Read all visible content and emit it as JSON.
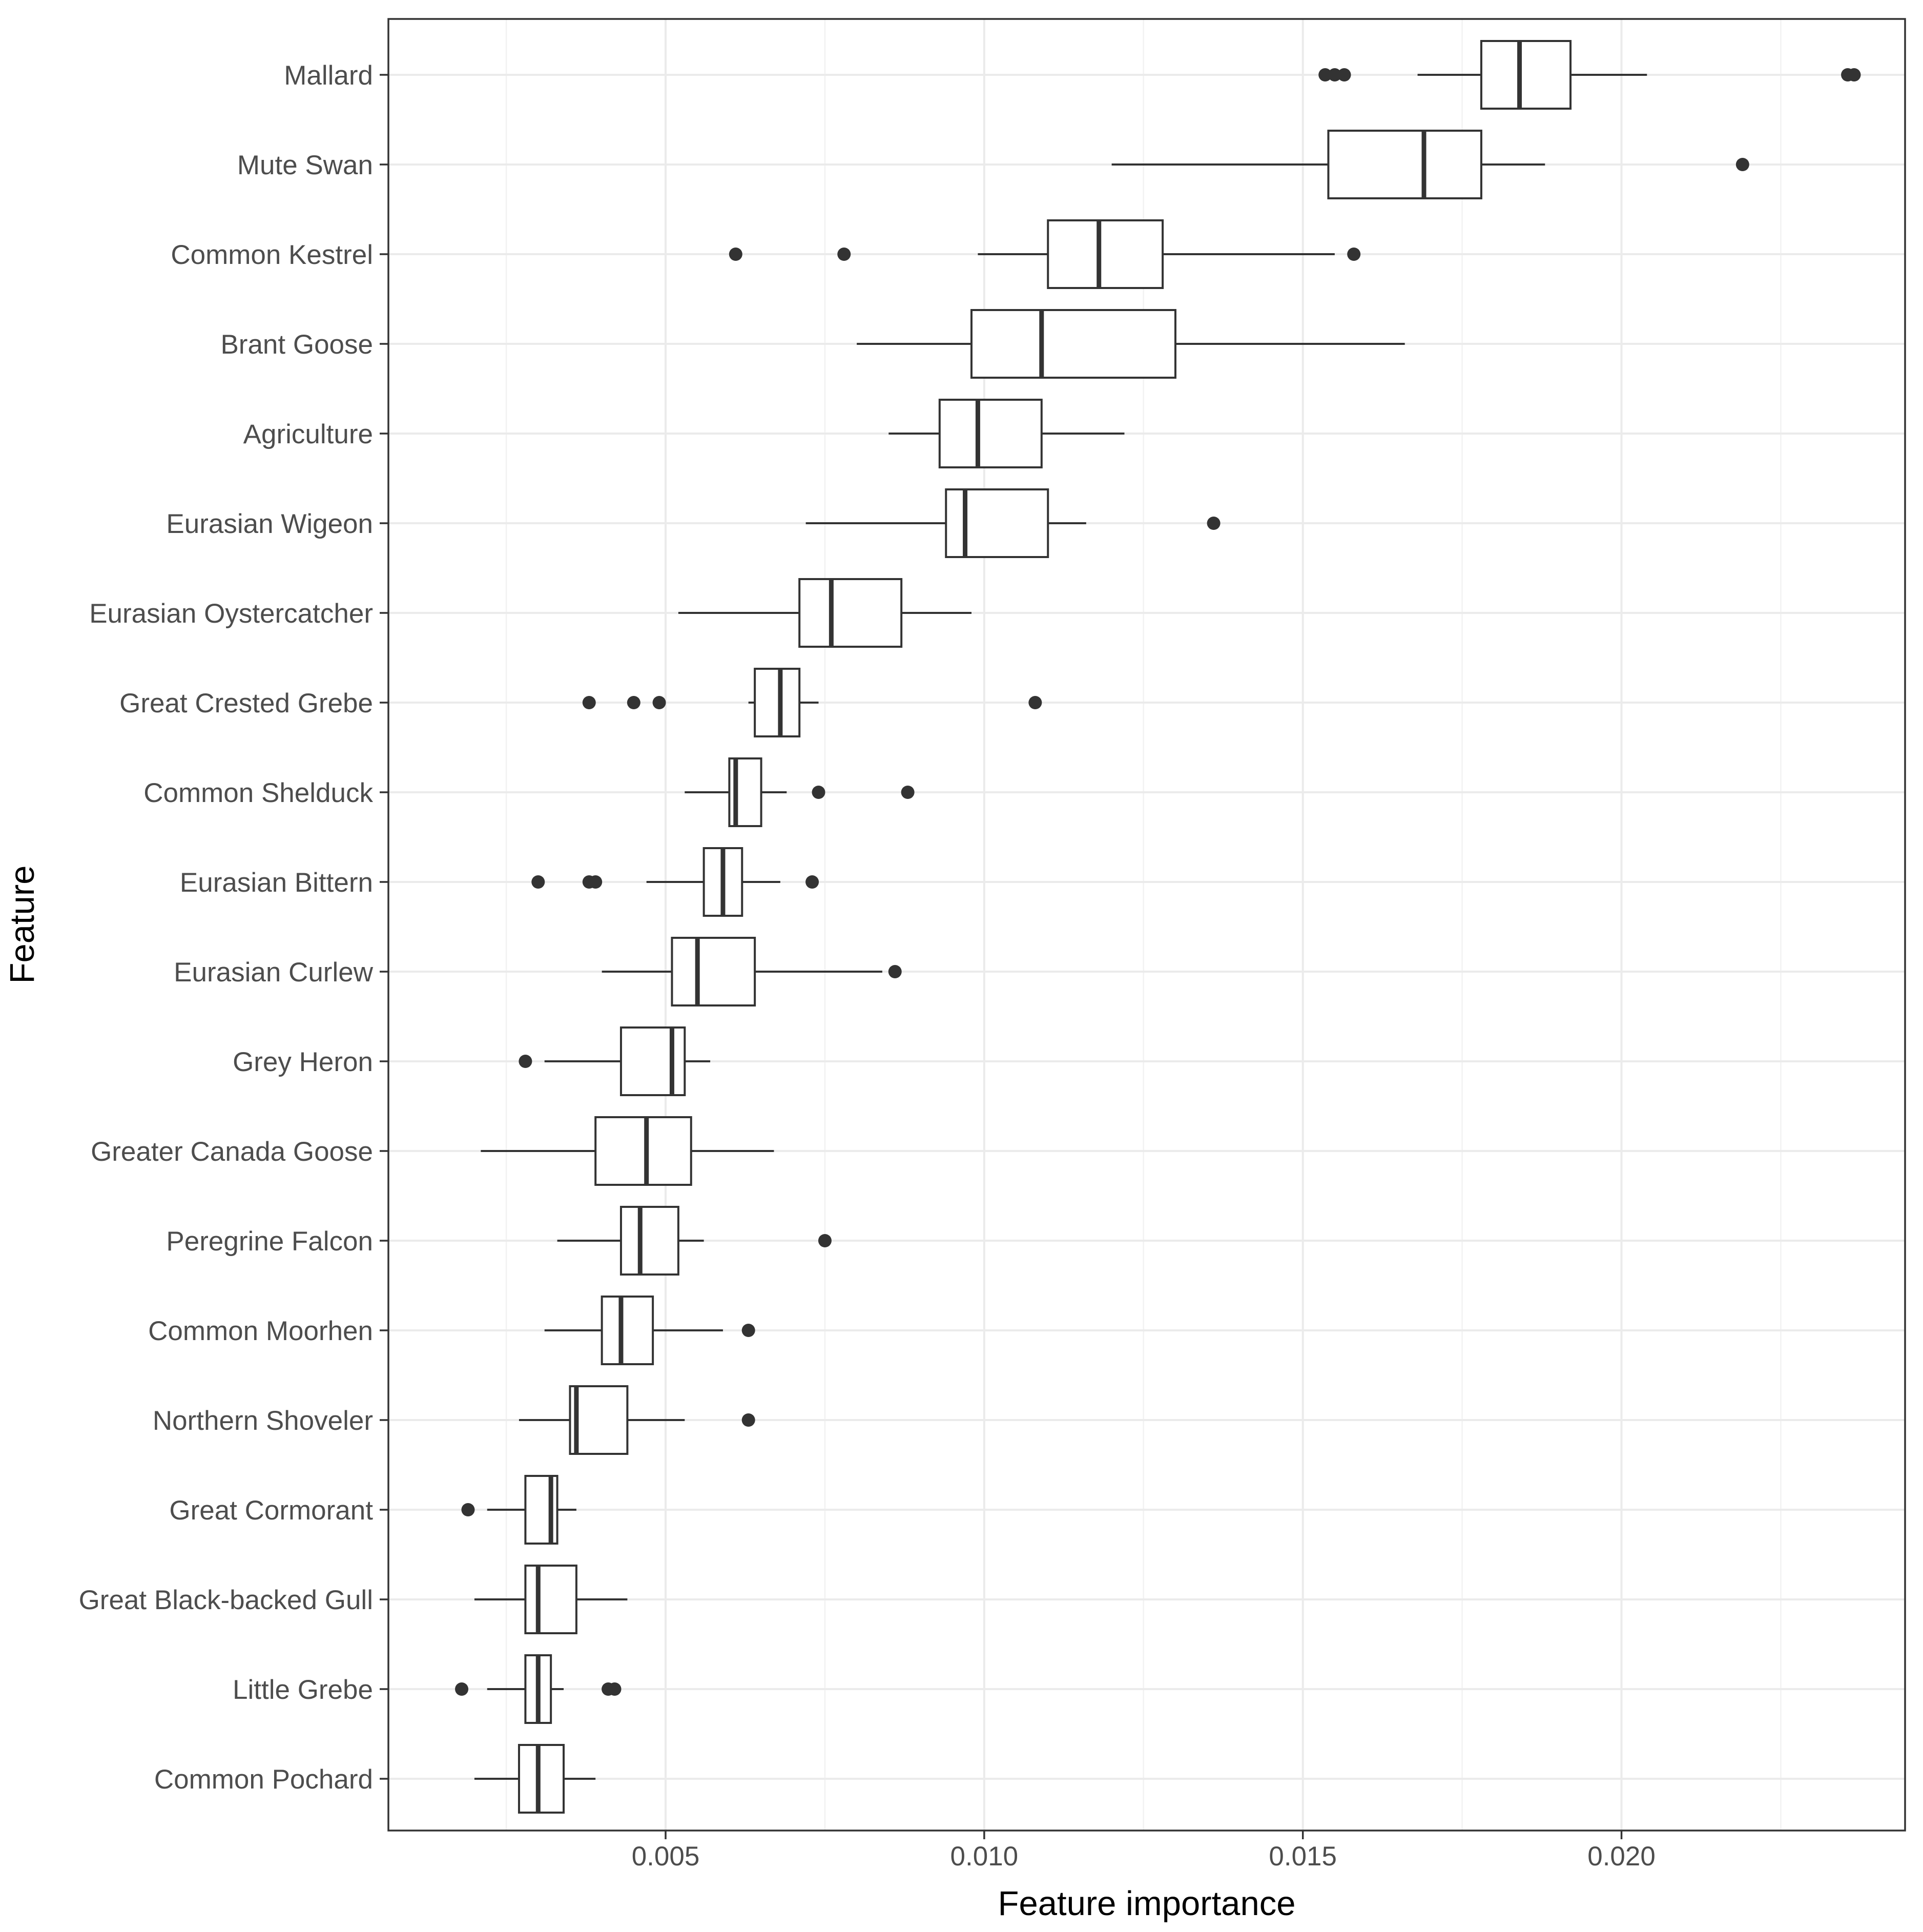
{
  "chart_data": {
    "type": "boxplot",
    "orientation": "horizontal",
    "xlabel": "Feature importance",
    "ylabel": "Feature",
    "xlim": [
      0.00065,
      0.02445
    ],
    "xticks": [
      0.005,
      0.01,
      0.015,
      0.02
    ],
    "xtick_labels": [
      "0.005",
      "0.010",
      "0.015",
      "0.020"
    ],
    "grid": true,
    "colors": {
      "box_stroke": "#333333",
      "outlier": "#333333",
      "grid_major": "#ebebeb",
      "grid_minor": "#f2f2f2",
      "panel_border": "#333333",
      "tick_text": "#4d4d4d"
    },
    "series": [
      {
        "name": "Mallard",
        "whisker_low": 0.0168,
        "q1": 0.0178,
        "median": 0.0184,
        "q3": 0.0192,
        "whisker_high": 0.0204,
        "outliers": [
          0.01535,
          0.0155,
          0.01565,
          0.02355,
          0.02365
        ]
      },
      {
        "name": "Mute Swan",
        "whisker_low": 0.012,
        "q1": 0.0154,
        "median": 0.0169,
        "q3": 0.0178,
        "whisker_high": 0.0188,
        "outliers": [
          0.0219
        ]
      },
      {
        "name": "Common Kestrel",
        "whisker_low": 0.0099,
        "q1": 0.011,
        "median": 0.0118,
        "q3": 0.0128,
        "whisker_high": 0.0155,
        "outliers": [
          0.0061,
          0.0078,
          0.0158
        ]
      },
      {
        "name": "Brant Goose",
        "whisker_low": 0.008,
        "q1": 0.0098,
        "median": 0.0109,
        "q3": 0.013,
        "whisker_high": 0.0166,
        "outliers": []
      },
      {
        "name": "Agriculture",
        "whisker_low": 0.0085,
        "q1": 0.0093,
        "median": 0.0099,
        "q3": 0.0109,
        "whisker_high": 0.0122,
        "outliers": []
      },
      {
        "name": "Eurasian Wigeon",
        "whisker_low": 0.0072,
        "q1": 0.0094,
        "median": 0.0097,
        "q3": 0.011,
        "whisker_high": 0.0116,
        "outliers": [
          0.0136
        ]
      },
      {
        "name": "Eurasian Oystercatcher",
        "whisker_low": 0.0052,
        "q1": 0.0071,
        "median": 0.0076,
        "q3": 0.0087,
        "whisker_high": 0.0098,
        "outliers": []
      },
      {
        "name": "Great Crested Grebe",
        "whisker_low": 0.0063,
        "q1": 0.0064,
        "median": 0.0068,
        "q3": 0.0071,
        "whisker_high": 0.0074,
        "outliers": [
          0.0038,
          0.0045,
          0.0049,
          0.0108
        ]
      },
      {
        "name": "Common Shelduck",
        "whisker_low": 0.0053,
        "q1": 0.006,
        "median": 0.0061,
        "q3": 0.0065,
        "whisker_high": 0.0069,
        "outliers": [
          0.0074,
          0.0088
        ]
      },
      {
        "name": "Eurasian Bittern",
        "whisker_low": 0.0047,
        "q1": 0.0056,
        "median": 0.0059,
        "q3": 0.0062,
        "whisker_high": 0.0068,
        "outliers": [
          0.003,
          0.0038,
          0.0039,
          0.0073
        ]
      },
      {
        "name": "Eurasian Curlew",
        "whisker_low": 0.004,
        "q1": 0.0051,
        "median": 0.0055,
        "q3": 0.0064,
        "whisker_high": 0.0084,
        "outliers": [
          0.0086
        ]
      },
      {
        "name": "Grey Heron",
        "whisker_low": 0.0031,
        "q1": 0.0043,
        "median": 0.0051,
        "q3": 0.0053,
        "whisker_high": 0.0057,
        "outliers": [
          0.0028
        ]
      },
      {
        "name": "Greater Canada Goose",
        "whisker_low": 0.0021,
        "q1": 0.0039,
        "median": 0.0047,
        "q3": 0.0054,
        "whisker_high": 0.0067,
        "outliers": []
      },
      {
        "name": "Peregrine Falcon",
        "whisker_low": 0.0033,
        "q1": 0.0043,
        "median": 0.0046,
        "q3": 0.0052,
        "whisker_high": 0.0056,
        "outliers": [
          0.0075
        ]
      },
      {
        "name": "Common Moorhen",
        "whisker_low": 0.0031,
        "q1": 0.004,
        "median": 0.0043,
        "q3": 0.0048,
        "whisker_high": 0.0059,
        "outliers": [
          0.0063
        ]
      },
      {
        "name": "Northern Shoveler",
        "whisker_low": 0.0027,
        "q1": 0.0035,
        "median": 0.0036,
        "q3": 0.0044,
        "whisker_high": 0.0053,
        "outliers": [
          0.0063
        ]
      },
      {
        "name": "Great Cormorant",
        "whisker_low": 0.0022,
        "q1": 0.0028,
        "median": 0.0032,
        "q3": 0.0033,
        "whisker_high": 0.0036,
        "outliers": [
          0.0019
        ]
      },
      {
        "name": "Great Black-backed Gull",
        "whisker_low": 0.002,
        "q1": 0.0028,
        "median": 0.003,
        "q3": 0.0036,
        "whisker_high": 0.0044,
        "outliers": []
      },
      {
        "name": "Little Grebe",
        "whisker_low": 0.0022,
        "q1": 0.0028,
        "median": 0.003,
        "q3": 0.0032,
        "whisker_high": 0.0034,
        "outliers": [
          0.0018,
          0.0041,
          0.0042
        ]
      },
      {
        "name": "Common Pochard",
        "whisker_low": 0.002,
        "q1": 0.0027,
        "median": 0.003,
        "q3": 0.0034,
        "whisker_high": 0.0039,
        "outliers": []
      }
    ]
  }
}
